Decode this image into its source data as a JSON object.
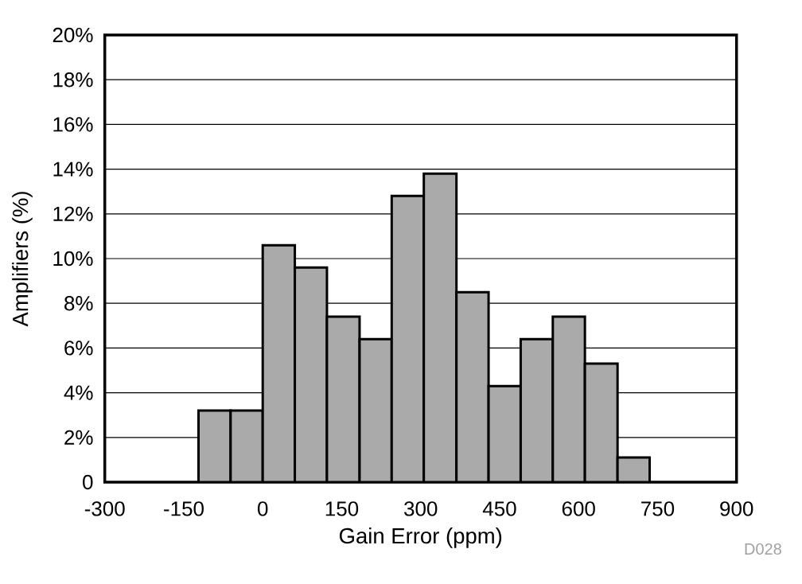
{
  "chart_data": {
    "type": "histogram",
    "xlabel": "Gain Error (ppm)",
    "ylabel": "Amplifiers (%)",
    "bins": [
      -122,
      -61,
      0,
      61,
      122,
      184,
      245,
      306,
      368,
      429,
      490,
      551,
      612,
      674,
      735
    ],
    "values": [
      3.2,
      3.2,
      10.6,
      9.6,
      7.4,
      6.4,
      12.8,
      13.8,
      8.5,
      4.3,
      6.4,
      7.4,
      5.3,
      1.1
    ],
    "color": "#aaaaaa",
    "xlim": [
      -300,
      900
    ],
    "xticks": [
      -300,
      -150,
      0,
      150,
      300,
      450,
      600,
      750,
      900
    ],
    "ylim": [
      0,
      20
    ],
    "yticks": [
      0,
      {
        "value": 2,
        "label": "2%"
      },
      {
        "value": 4,
        "label": "4%"
      },
      {
        "value": 6,
        "label": "6%"
      },
      {
        "value": 8,
        "label": "8%"
      },
      {
        "value": 10,
        "label": "10%"
      },
      {
        "value": 12,
        "label": "12%"
      },
      {
        "value": 14,
        "label": "14%"
      },
      {
        "value": 16,
        "label": "16%"
      },
      {
        "value": 18,
        "label": "18%"
      },
      {
        "value": 20,
        "label": "20%"
      }
    ],
    "grid": "y",
    "annotations": [
      "D028"
    ]
  }
}
